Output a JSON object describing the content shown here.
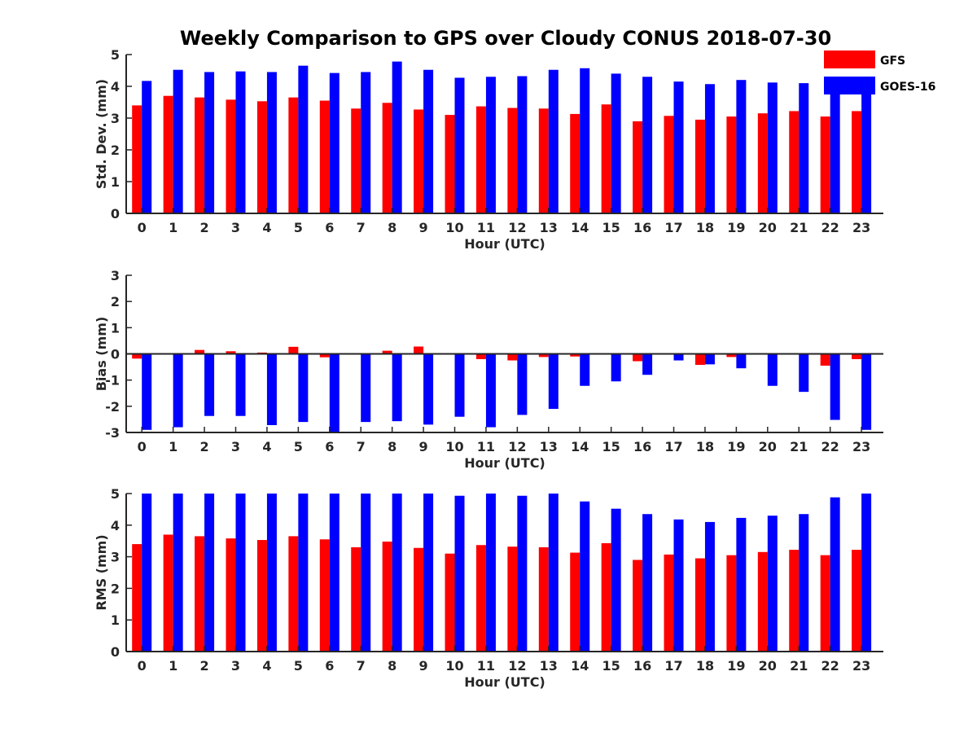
{
  "chart_data": {
    "title": "Weekly Comparison to GPS over Cloudy CONUS 2018-07-30",
    "legend": {
      "placement": "top-right",
      "entries": [
        {
          "name": "GFS",
          "color": "#ff0000"
        },
        {
          "name": "GOES-16",
          "color": "#0000ff"
        }
      ]
    },
    "panels": [
      {
        "type": "bar",
        "xlabel": "Hour (UTC)",
        "ylabel": "Std. Dev. (mm)",
        "ylim": [
          0,
          5
        ],
        "yticks": [
          0,
          1,
          2,
          3,
          4,
          5
        ],
        "categories": [
          "0",
          "1",
          "2",
          "3",
          "4",
          "5",
          "6",
          "7",
          "8",
          "9",
          "10",
          "11",
          "12",
          "13",
          "14",
          "15",
          "16",
          "17",
          "18",
          "19",
          "20",
          "21",
          "22",
          "23"
        ],
        "series": [
          {
            "name": "GFS",
            "color": "#ff0000",
            "values": [
              3.4,
              3.7,
              3.65,
              3.58,
              3.53,
              3.65,
              3.55,
              3.3,
              3.48,
              3.27,
              3.1,
              3.37,
              3.32,
              3.3,
              3.13,
              3.43,
              2.9,
              3.07,
              2.95,
              3.05,
              3.15,
              3.22,
              3.05,
              3.22
            ]
          },
          {
            "name": "GOES-16",
            "color": "#0000ff",
            "values": [
              4.17,
              4.52,
              4.45,
              4.47,
              4.45,
              4.65,
              4.42,
              4.45,
              4.78,
              4.52,
              4.27,
              4.3,
              4.32,
              4.52,
              4.57,
              4.4,
              4.3,
              4.15,
              4.07,
              4.2,
              4.12,
              4.1,
              4.17,
              4.0
            ]
          }
        ]
      },
      {
        "type": "bar",
        "xlabel": "Hour (UTC)",
        "ylabel": "Bias (mm)",
        "ylim": [
          -3,
          3
        ],
        "yticks": [
          -3,
          -2,
          -1,
          0,
          1,
          2,
          3
        ],
        "categories": [
          "0",
          "1",
          "2",
          "3",
          "4",
          "5",
          "6",
          "7",
          "8",
          "9",
          "10",
          "11",
          "12",
          "13",
          "14",
          "15",
          "16",
          "17",
          "18",
          "19",
          "20",
          "21",
          "22",
          "23"
        ],
        "series": [
          {
            "name": "GFS",
            "color": "#ff0000",
            "values": [
              -0.18,
              0.0,
              0.15,
              0.1,
              0.05,
              0.27,
              -0.13,
              -0.03,
              0.12,
              0.28,
              -0.03,
              -0.2,
              -0.25,
              -0.12,
              -0.1,
              0.0,
              -0.28,
              -0.03,
              -0.42,
              -0.12,
              0.0,
              0.02,
              -0.45,
              -0.2
            ]
          },
          {
            "name": "GOES-16",
            "color": "#0000ff",
            "values": [
              -2.9,
              -2.8,
              -2.37,
              -2.37,
              -2.72,
              -2.6,
              -3.0,
              -2.6,
              -2.57,
              -2.7,
              -2.4,
              -2.8,
              -2.33,
              -2.1,
              -1.22,
              -1.05,
              -0.8,
              -0.25,
              -0.4,
              -0.55,
              -1.22,
              -1.45,
              -2.52,
              -2.9
            ]
          }
        ]
      },
      {
        "type": "bar",
        "xlabel": "Hour (UTC)",
        "ylabel": "RMS (mm)",
        "ylim": [
          0,
          5
        ],
        "yticks": [
          0,
          1,
          2,
          3,
          4,
          5
        ],
        "categories": [
          "0",
          "1",
          "2",
          "3",
          "4",
          "5",
          "6",
          "7",
          "8",
          "9",
          "10",
          "11",
          "12",
          "13",
          "14",
          "15",
          "16",
          "17",
          "18",
          "19",
          "20",
          "21",
          "22",
          "23"
        ],
        "series": [
          {
            "name": "GFS",
            "color": "#ff0000",
            "values": [
              3.4,
              3.7,
              3.65,
              3.58,
              3.53,
              3.65,
              3.55,
              3.3,
              3.48,
              3.28,
              3.1,
              3.37,
              3.32,
              3.3,
              3.13,
              3.43,
              2.9,
              3.07,
              2.95,
              3.05,
              3.15,
              3.22,
              3.05,
              3.22
            ]
          },
          {
            "name": "GOES-16",
            "color": "#0000ff",
            "values": [
              5.0,
              5.0,
              5.0,
              5.0,
              5.0,
              5.0,
              5.0,
              5.0,
              5.0,
              5.0,
              4.93,
              5.0,
              4.93,
              5.0,
              4.75,
              4.52,
              4.35,
              4.18,
              4.1,
              4.23,
              4.3,
              4.35,
              4.88,
              5.0
            ]
          }
        ]
      }
    ]
  }
}
